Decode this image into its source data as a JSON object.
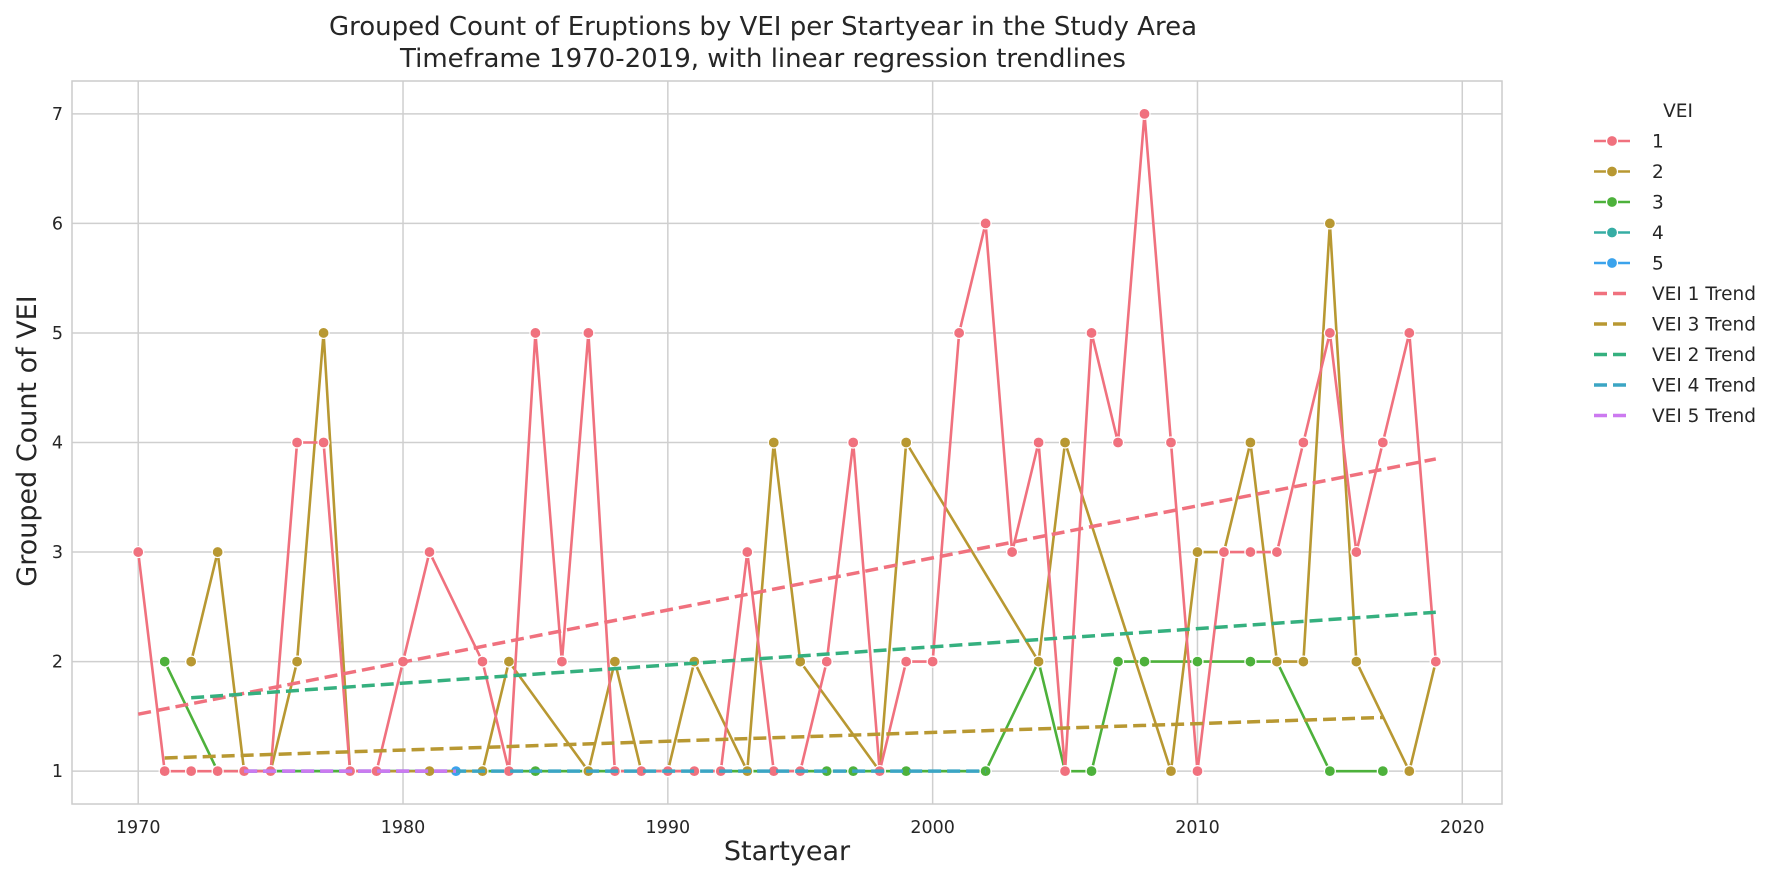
{
  "chart_data": {
    "type": "line",
    "title": [
      "Grouped Count of Eruptions by VEI per Startyear in the Study Area",
      "Timeframe 1970-2019, with linear regression trendlines"
    ],
    "xlabel": "Startyear",
    "ylabel": "Grouped Count of VEI",
    "xlim": [
      1967.5,
      2021.5
    ],
    "ylim": [
      0.7,
      7.3
    ],
    "xticks": [
      1970,
      1980,
      1990,
      2000,
      2010,
      2020
    ],
    "yticks": [
      1,
      2,
      3,
      4,
      5,
      6,
      7
    ],
    "grid": true,
    "legend": {
      "title": "VEI",
      "placement": "outside right"
    },
    "series": [
      {
        "name": "1",
        "color": "#f0717e",
        "style": "solid-marker",
        "x": [
          1970,
          1971,
          1972,
          1973,
          1974,
          1975,
          1976,
          1977,
          1978,
          1979,
          1980,
          1981,
          1983,
          1984,
          1985,
          1986,
          1987,
          1988,
          1989,
          1990,
          1991,
          1992,
          1993,
          1994,
          1995,
          1996,
          1997,
          1998,
          1999,
          2000,
          2001,
          2002,
          2003,
          2004,
          2005,
          2006,
          2007,
          2008,
          2009,
          2010,
          2011,
          2012,
          2013,
          2014,
          2015,
          2016,
          2017,
          2018,
          2019
        ],
        "y": [
          3,
          1,
          1,
          1,
          1,
          1,
          4,
          4,
          1,
          1,
          2,
          3,
          2,
          1,
          5,
          2,
          5,
          1,
          1,
          1,
          1,
          1,
          3,
          1,
          1,
          2,
          4,
          1,
          2,
          2,
          5,
          6,
          3,
          4,
          1,
          5,
          4,
          7,
          4,
          1,
          3,
          3,
          3,
          4,
          5,
          3,
          4,
          5,
          2
        ]
      },
      {
        "name": "2",
        "color": "#b89832",
        "style": "solid-marker",
        "x": [
          1972,
          1973,
          1974,
          1975,
          1976,
          1977,
          1978,
          1981,
          1983,
          1984,
          1987,
          1988,
          1989,
          1990,
          1991,
          1993,
          1994,
          1995,
          1998,
          1999,
          2004,
          2005,
          2009,
          2010,
          2011,
          2012,
          2013,
          2014,
          2015,
          2016,
          2018,
          2019
        ],
        "y": [
          2,
          3,
          1,
          1,
          2,
          5,
          1,
          1,
          1,
          2,
          1,
          2,
          1,
          1,
          2,
          1,
          4,
          2,
          1,
          4,
          2,
          4,
          1,
          3,
          3,
          4,
          2,
          2,
          6,
          2,
          1,
          2
        ]
      },
      {
        "name": "3",
        "color": "#4db13b",
        "style": "solid-marker",
        "x": [
          1971,
          1973,
          1975,
          1985,
          1987,
          1989,
          1992,
          1993,
          1996,
          1997,
          1998,
          1999,
          2002,
          2004,
          2005,
          2006,
          2007,
          2008,
          2010,
          2012,
          2013,
          2015,
          2017
        ],
        "y": [
          2,
          1,
          1,
          1,
          1,
          1,
          1,
          1,
          1,
          1,
          1,
          1,
          1,
          2,
          1,
          1,
          2,
          2,
          2,
          2,
          2,
          1,
          1
        ]
      },
      {
        "name": "4",
        "color": "#36ada4",
        "style": "solid-marker",
        "x": [
          1974,
          2002
        ],
        "y": [
          1,
          1
        ]
      },
      {
        "name": "5",
        "color": "#3ba3ec",
        "style": "solid-marker",
        "x": [
          1974,
          1982
        ],
        "y": [
          1,
          1
        ]
      },
      {
        "name": "VEI 1 Trend",
        "color": "#f0717e",
        "style": "dashed",
        "x": [
          1970,
          2019
        ],
        "y": [
          1.52,
          3.85
        ]
      },
      {
        "name": "VEI 3 Trend",
        "color": "#b89832",
        "style": "dashed",
        "x": [
          1971,
          2017
        ],
        "y": [
          1.12,
          1.49
        ]
      },
      {
        "name": "VEI 2 Trend",
        "color": "#35b07f",
        "style": "dashed",
        "x": [
          1972,
          2019
        ],
        "y": [
          1.67,
          2.45
        ]
      },
      {
        "name": "VEI 4 Trend",
        "color": "#3ba5c4",
        "style": "dashed",
        "x": [
          1974,
          2002
        ],
        "y": [
          1.0,
          1.0
        ]
      },
      {
        "name": "VEI 5 Trend",
        "color": "#cc79f0",
        "style": "dashed",
        "x": [
          1974,
          1982
        ],
        "y": [
          1.0,
          1.0
        ]
      }
    ]
  }
}
